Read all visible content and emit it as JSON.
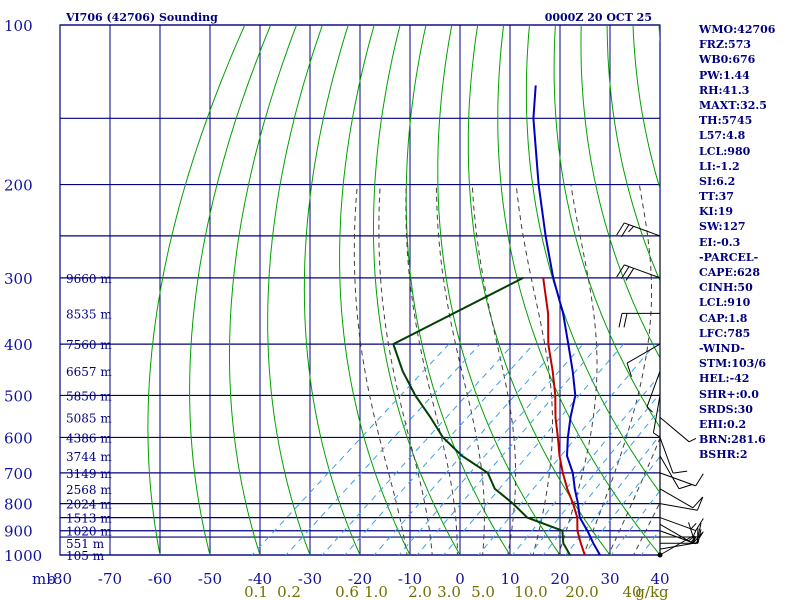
{
  "header": {
    "title": "VI706 (42706) Sounding",
    "time": "0000Z 20 OCT 25"
  },
  "indices": [
    "WMO:42706",
    "FRZ:573",
    "WB0:676",
    "PW:1.44",
    "RH:41.3",
    "MAXT:32.5",
    "TH:5745",
    "L57:4.8",
    "LCL:980",
    "LI:-1.2",
    "SI:6.2",
    "TT:37",
    "KI:19",
    "SW:127",
    "EI:-0.3",
    "-PARCEL-",
    "CAPE:628",
    "CINH:50",
    "LCL:910",
    "CAP:1.8",
    "LFC:785",
    "-WIND-",
    "STM:103/6",
    "HEL:-42",
    "SHR+:0.0",
    "SRDS:30",
    "EHI:0.2",
    "BRN:281.6",
    "BSHR:2"
  ],
  "colors": {
    "grid": "#000080",
    "isotherm": "#000080",
    "dry_adiabat": "#00a000",
    "moist_adiabat": "#404040",
    "mixing_ratio": "#3ca0e0",
    "temperature": "#0000c0",
    "parcel": "#c00000",
    "dewpoint": "#004000",
    "label": "#1010a0",
    "mixing_label": "#707000"
  },
  "chart_data": {
    "type": "line",
    "chart_kind": "skew-t log-p sounding",
    "y_axis": {
      "scale": "log",
      "ylim": [
        1000,
        100
      ],
      "ticks": [
        100,
        200,
        300,
        400,
        500,
        600,
        700,
        800,
        900,
        1000
      ],
      "unit_label": "mb"
    },
    "x_axis": {
      "ticks": [
        -80,
        -70,
        -60,
        -50,
        -40,
        -30,
        -20,
        -10,
        0,
        10,
        20,
        30,
        40
      ]
    },
    "mixing_ratio_ticks": [
      "0.1",
      "0.2",
      "0.6",
      "1.0",
      "2.0",
      "3.0",
      "5.0",
      "10.0",
      "20.0",
      "40",
      "g/kg"
    ],
    "height_labels": [
      {
        "p": 300,
        "text": "9660 m"
      },
      {
        "p": 350,
        "text": "8535 m"
      },
      {
        "p": 400,
        "text": "7560 m"
      },
      {
        "p": 450,
        "text": "6657 m"
      },
      {
        "p": 500,
        "text": "5850 m"
      },
      {
        "p": 550,
        "text": "5085 m"
      },
      {
        "p": 600,
        "text": "4386 m"
      },
      {
        "p": 650,
        "text": "3744 m"
      },
      {
        "p": 700,
        "text": "3149 m"
      },
      {
        "p": 750,
        "text": "2568 m"
      },
      {
        "p": 800,
        "text": "2024 m"
      },
      {
        "p": 850,
        "text": "1513 m"
      },
      {
        "p": 900,
        "text": "1020 m"
      },
      {
        "p": 950,
        "text": "551 m"
      },
      {
        "p": 1000,
        "text": "105 m"
      }
    ],
    "series": [
      {
        "key": "temperature",
        "points": [
          [
            1008,
            29
          ],
          [
            1000,
            28
          ],
          [
            950,
            24
          ],
          [
            900,
            20
          ],
          [
            850,
            15.5
          ],
          [
            800,
            12
          ],
          [
            750,
            8
          ],
          [
            700,
            4
          ],
          [
            650,
            -1
          ],
          [
            600,
            -5
          ],
          [
            550,
            -9
          ],
          [
            500,
            -13
          ],
          [
            450,
            -19
          ],
          [
            400,
            -26
          ],
          [
            350,
            -34
          ],
          [
            300,
            -44
          ],
          [
            250,
            -55
          ],
          [
            200,
            -68
          ],
          [
            150,
            -84
          ],
          [
            130,
            -91
          ]
        ]
      },
      {
        "key": "dewpoint",
        "points": [
          [
            1008,
            23
          ],
          [
            1000,
            22
          ],
          [
            950,
            18
          ],
          [
            900,
            15
          ],
          [
            850,
            5
          ],
          [
            800,
            -1
          ],
          [
            750,
            -8
          ],
          [
            700,
            -13
          ],
          [
            650,
            -22
          ],
          [
            600,
            -30
          ],
          [
            550,
            -37
          ],
          [
            500,
            -45
          ],
          [
            450,
            -53
          ],
          [
            400,
            -61
          ],
          [
            300,
            -50
          ]
        ]
      },
      {
        "key": "parcel",
        "points": [
          [
            1008,
            25.5
          ],
          [
            950,
            21.5
          ],
          [
            900,
            18
          ],
          [
            850,
            15
          ],
          [
            800,
            11
          ],
          [
            750,
            6.5
          ],
          [
            700,
            2
          ],
          [
            650,
            -2.5
          ],
          [
            600,
            -7
          ],
          [
            550,
            -12
          ],
          [
            500,
            -17
          ],
          [
            450,
            -23
          ],
          [
            400,
            -30
          ],
          [
            350,
            -37
          ],
          [
            300,
            -46
          ]
        ]
      }
    ],
    "winds": [
      {
        "p": 1000,
        "dir": 60,
        "spd": 10
      },
      {
        "p": 975,
        "dir": 80,
        "spd": 15
      },
      {
        "p": 950,
        "dir": 90,
        "spd": 15
      },
      {
        "p": 925,
        "dir": 90,
        "spd": 15
      },
      {
        "p": 900,
        "dir": 110,
        "spd": 15
      },
      {
        "p": 875,
        "dir": 120,
        "spd": 15
      },
      {
        "p": 850,
        "dir": 110,
        "spd": 15
      },
      {
        "p": 800,
        "dir": 100,
        "spd": 10
      },
      {
        "p": 750,
        "dir": 120,
        "spd": 10
      },
      {
        "p": 700,
        "dir": 110,
        "spd": 10
      },
      {
        "p": 650,
        "dir": 150,
        "spd": 10
      },
      {
        "p": 600,
        "dir": 160,
        "spd": 10
      },
      {
        "p": 550,
        "dir": 130,
        "spd": 5
      },
      {
        "p": 500,
        "dir": 190,
        "spd": 5
      },
      {
        "p": 450,
        "dir": 200,
        "spd": 5
      },
      {
        "p": 400,
        "dir": 240,
        "spd": 10
      },
      {
        "p": 350,
        "dir": 270,
        "spd": 20
      },
      {
        "p": 300,
        "dir": 290,
        "spd": 30
      },
      {
        "p": 250,
        "dir": 290,
        "spd": 25
      }
    ]
  }
}
